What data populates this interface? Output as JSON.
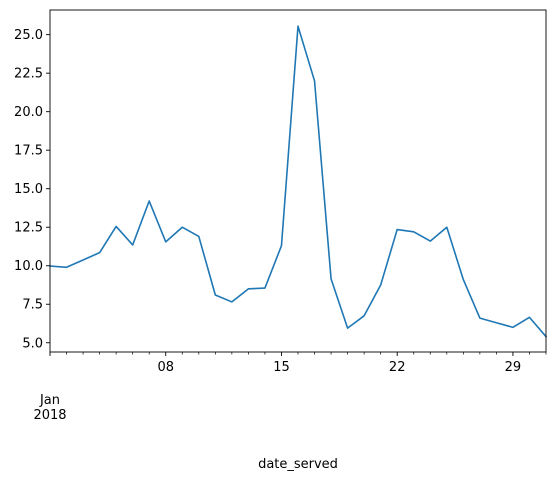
{
  "chart_data": {
    "type": "line",
    "xlabel": "date_served",
    "ylabel": "",
    "x": [
      "2018-01-01",
      "2018-01-02",
      "2018-01-03",
      "2018-01-04",
      "2018-01-05",
      "2018-01-06",
      "2018-01-07",
      "2018-01-08",
      "2018-01-09",
      "2018-01-10",
      "2018-01-11",
      "2018-01-12",
      "2018-01-13",
      "2018-01-14",
      "2018-01-15",
      "2018-01-16",
      "2018-01-17",
      "2018-01-18",
      "2018-01-19",
      "2018-01-20",
      "2018-01-21",
      "2018-01-22",
      "2018-01-23",
      "2018-01-24",
      "2018-01-25",
      "2018-01-26",
      "2018-01-27",
      "2018-01-28",
      "2018-01-29",
      "2018-01-30",
      "2018-01-31"
    ],
    "series": [
      {
        "color": "#1f77b4",
        "values": [
          9.98,
          9.9,
          10.37,
          10.85,
          12.55,
          11.35,
          14.2,
          11.55,
          12.5,
          11.9,
          8.1,
          7.65,
          8.5,
          8.55,
          11.3,
          25.55,
          22.0,
          9.15,
          5.95,
          6.75,
          8.75,
          12.35,
          12.2,
          11.6,
          12.5,
          9.1,
          6.6,
          6.3,
          6.0,
          6.65,
          5.4
        ]
      }
    ],
    "xlim": [
      "2018-01-01",
      "2018-01-31"
    ],
    "ylim": [
      4.4,
      26.6
    ],
    "yticks": [
      5.0,
      7.5,
      10.0,
      12.5,
      15.0,
      17.5,
      20.0,
      22.5,
      25.0
    ],
    "ytick_labels": [
      "5.0",
      "7.5",
      "10.0",
      "12.5",
      "15.0",
      "17.5",
      "20.0",
      "22.5",
      "25.0"
    ],
    "xticks_major": [
      "2018-01-08",
      "2018-01-15",
      "2018-01-22",
      "2018-01-29"
    ],
    "xtick_labels": [
      "08",
      "15",
      "22",
      "29"
    ],
    "x_start_label_line1": "Jan",
    "x_start_label_line2": "2018",
    "grid": false,
    "legend": "none"
  }
}
